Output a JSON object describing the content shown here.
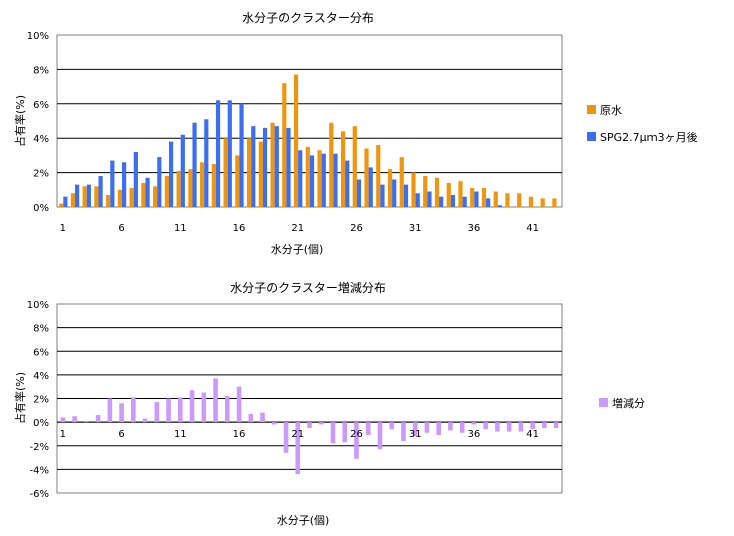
{
  "chart_data": [
    {
      "type": "bar",
      "title": "水分子のクラスター分布",
      "xlabel": "水分子(個)",
      "ylabel": "占有率(%)",
      "ylim": [
        0,
        10
      ],
      "yticks": [
        "0%",
        "2%",
        "4%",
        "6%",
        "8%",
        "10%"
      ],
      "ytick_values": [
        0,
        2,
        4,
        6,
        8,
        10
      ],
      "xtick_labels": [
        "1",
        "6",
        "11",
        "16",
        "21",
        "26",
        "31",
        "36",
        "41"
      ],
      "grid": true,
      "legend": "right",
      "categories": [
        1,
        2,
        3,
        4,
        5,
        6,
        7,
        8,
        9,
        10,
        11,
        12,
        13,
        14,
        15,
        16,
        17,
        18,
        19,
        20,
        21,
        22,
        23,
        24,
        25,
        26,
        27,
        28,
        29,
        30,
        31,
        32,
        33,
        34,
        35,
        36,
        37,
        38,
        39,
        40,
        41,
        42,
        43
      ],
      "series": [
        {
          "name": "原水",
          "color": "#f0960e",
          "values": [
            0.2,
            0.8,
            1.2,
            1.2,
            0.7,
            1.0,
            1.1,
            1.4,
            1.2,
            1.8,
            2.1,
            2.2,
            2.6,
            2.5,
            4.0,
            3.0,
            4.0,
            3.8,
            4.9,
            7.2,
            7.7,
            3.5,
            3.3,
            4.9,
            4.4,
            4.7,
            3.4,
            3.6,
            2.2,
            2.9,
            2.0,
            1.8,
            1.7,
            1.4,
            1.5,
            1.1,
            1.1,
            0.9,
            0.8,
            0.8,
            0.6,
            0.5,
            0.5
          ]
        },
        {
          "name": "SPG2.7μｍ3ヶ月後",
          "color": "#3b6ef0",
          "values": [
            0.6,
            1.3,
            1.3,
            1.8,
            2.7,
            2.6,
            3.2,
            1.7,
            2.9,
            3.8,
            4.2,
            4.9,
            5.1,
            6.2,
            6.2,
            6.0,
            4.7,
            4.6,
            4.7,
            4.6,
            3.3,
            3.0,
            3.1,
            3.1,
            2.7,
            1.6,
            2.3,
            1.3,
            1.6,
            1.3,
            0.8,
            0.9,
            0.6,
            0.7,
            0.6,
            0.9,
            0.5,
            0.1,
            0.0,
            0.0,
            0.0,
            0.0,
            0.0
          ]
        }
      ]
    },
    {
      "type": "bar",
      "title": "水分子のクラスター増減分布",
      "xlabel": "水分子(個)",
      "ylabel": "占有率(%)",
      "ylim": [
        -6,
        10
      ],
      "yticks": [
        "-6%",
        "-4%",
        "-2%",
        "0%",
        "2%",
        "4%",
        "6%",
        "8%",
        "10%"
      ],
      "ytick_values": [
        -6,
        -4,
        -2,
        0,
        2,
        4,
        6,
        8,
        10
      ],
      "xtick_labels": [
        "1",
        "6",
        "11",
        "16",
        "21",
        "26",
        "31",
        "36",
        "41"
      ],
      "grid": true,
      "legend": "right",
      "categories": [
        1,
        2,
        3,
        4,
        5,
        6,
        7,
        8,
        9,
        10,
        11,
        12,
        13,
        14,
        15,
        16,
        17,
        18,
        19,
        20,
        21,
        22,
        23,
        24,
        25,
        26,
        27,
        28,
        29,
        30,
        31,
        32,
        33,
        34,
        35,
        36,
        37,
        38,
        39,
        40,
        41,
        42,
        43
      ],
      "series": [
        {
          "name": "増減分",
          "color": "#cc99ff",
          "values": [
            0.4,
            0.5,
            0.1,
            0.6,
            2.0,
            1.6,
            2.1,
            0.3,
            1.7,
            2.0,
            2.1,
            2.7,
            2.5,
            3.7,
            2.2,
            3.0,
            0.7,
            0.8,
            -0.2,
            -2.6,
            -4.4,
            -0.5,
            -0.2,
            -1.8,
            -1.7,
            -3.1,
            -1.1,
            -2.3,
            -0.6,
            -1.6,
            -1.2,
            -0.9,
            -1.1,
            -0.7,
            -0.9,
            -0.2,
            -0.6,
            -0.8,
            -0.8,
            -0.8,
            -0.6,
            -0.5,
            -0.5
          ]
        }
      ]
    }
  ]
}
